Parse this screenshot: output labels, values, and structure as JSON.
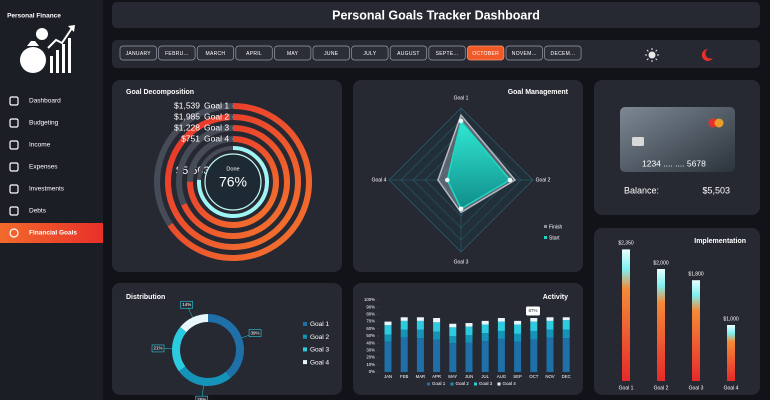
{
  "sidebar": {
    "brand": "Personal Finance",
    "menu": [
      "Dashboard",
      "Budgeting",
      "Income",
      "Expenses",
      "Investments",
      "Debts",
      "Financial Goals"
    ],
    "active": "Financial Goals"
  },
  "header": {
    "title": "Personal Goals Tracker Dashboard"
  },
  "months": {
    "items": [
      "JANUARY",
      "FEBRU...",
      "MARCH",
      "APRIL",
      "MAY",
      "JUNE",
      "JULY",
      "AUGUST",
      "SEPTE...",
      "OCTOBER",
      "NOVEM...",
      "DECEM..."
    ],
    "active": "OCTOBER"
  },
  "goal_decomposition": {
    "title": "Goal Decomposition",
    "goals": [
      {
        "name": "Goal 1",
        "value": 1539,
        "label": "$1,539"
      },
      {
        "name": "Goal 2",
        "value": 1985,
        "label": "$1,985"
      },
      {
        "name": "Goal 3",
        "value": 1228,
        "label": "$1,228"
      },
      {
        "name": "Goal 4",
        "value": 751,
        "label": "$751"
      }
    ],
    "total": {
      "value": 5503,
      "label": "$5,503"
    },
    "done": {
      "caption": "Done",
      "value": 76,
      "label": "76%"
    }
  },
  "goal_management": {
    "title": "Goal Management",
    "axes": [
      "Goal 1",
      "Goal 2",
      "Goal 3",
      "Goal 4"
    ],
    "rlim": [
      0,
      100
    ],
    "series": [
      {
        "name": "Finish",
        "color": "#8a909b",
        "values": [
          90,
          75,
          45,
          32
        ]
      },
      {
        "name": "Start",
        "color": "#1fd8c4",
        "values": [
          82,
          68,
          40,
          19
        ]
      }
    ]
  },
  "card": {
    "number": "1234 .... .... 5678",
    "balance_label": "Balance:",
    "balance": "$5,503"
  },
  "implementation": {
    "title": "Implementation",
    "categories": [
      "Goal 1",
      "Goal 2",
      "Goal 3",
      "Goal 4"
    ],
    "values": [
      2350,
      2000,
      1800,
      1000
    ],
    "value_labels": [
      "$2,350",
      "$2,000",
      "$1,800",
      "$1,000"
    ],
    "ylim": [
      0,
      2500
    ]
  },
  "distribution": {
    "title": "Distribution",
    "categories": [
      "Goal 1",
      "Goal 2",
      "Goal 3",
      "Goal 4"
    ],
    "values": [
      39,
      26,
      21,
      14
    ],
    "value_labels": [
      "39%",
      "26%",
      "21%",
      "14%"
    ],
    "colors": [
      "#1f6fa8",
      "#1593b9",
      "#2ccbe0",
      "#e8f6fb"
    ]
  },
  "activity": {
    "title": "Activity",
    "categories": [
      "JAN",
      "FEB",
      "MAR",
      "APR",
      "MAY",
      "JUN",
      "JUL",
      "AUG",
      "SEP",
      "OCT",
      "NOV",
      "DEC"
    ],
    "series": [
      {
        "name": "Goal 1",
        "color": "#1f6fa8",
        "values": [
          42,
          48,
          47,
          45,
          40,
          41,
          43,
          46,
          42,
          45,
          48,
          47
        ]
      },
      {
        "name": "Goal 2",
        "color": "#1593b9",
        "values": [
          10,
          11,
          12,
          11,
          10,
          10,
          11,
          11,
          11,
          12,
          11,
          12
        ]
      },
      {
        "name": "Goal 3",
        "color": "#2ccbe0",
        "values": [
          13,
          12,
          12,
          13,
          12,
          12,
          12,
          13,
          13,
          13,
          12,
          13
        ]
      },
      {
        "name": "Goal 4",
        "color": "#e8f6fb",
        "values": [
          5,
          5,
          5,
          6,
          5,
          5,
          5,
          5,
          5,
          5,
          5,
          4
        ]
      }
    ],
    "ylim": [
      0,
      100
    ],
    "yticks": [
      {
        "value": 0,
        "label": "0%"
      },
      {
        "value": 10,
        "label": "10%"
      },
      {
        "value": 20,
        "label": "20%"
      },
      {
        "value": 30,
        "label": "30%"
      },
      {
        "value": 40,
        "label": "40%"
      },
      {
        "value": 50,
        "label": "50%"
      },
      {
        "value": 60,
        "label": "60%"
      },
      {
        "value": 70,
        "label": "70%"
      },
      {
        "value": 80,
        "label": "80%"
      },
      {
        "value": 90,
        "label": "90%"
      },
      {
        "value": 100,
        "label": "100%"
      }
    ],
    "tooltip": "87%"
  }
}
